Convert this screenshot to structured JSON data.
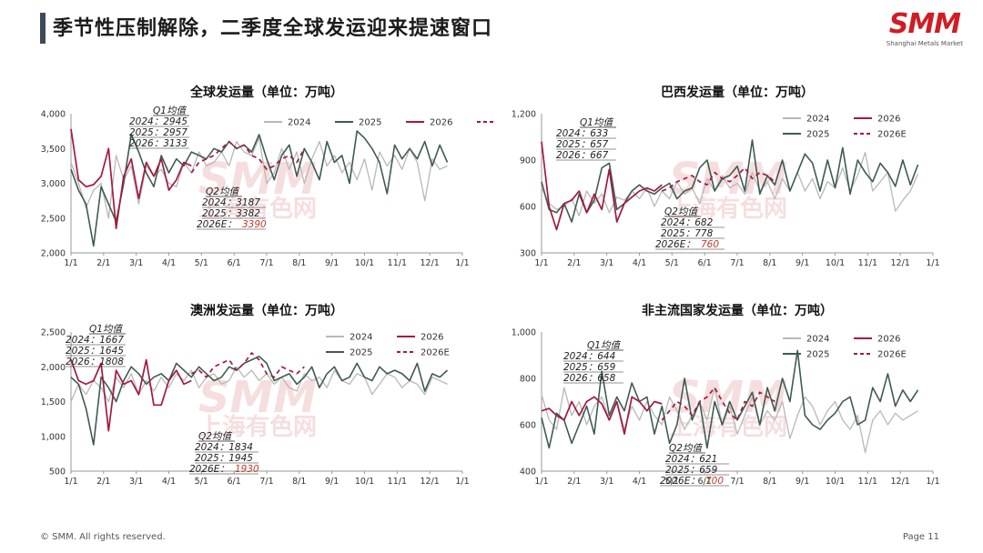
{
  "header": {
    "title": "季节性压制解除，二季度全球发运迎来提速窗口"
  },
  "logo": {
    "text": "SMM",
    "sub": "Shanghai Metals Market"
  },
  "footer": {
    "copyright": "© SMM. All rights reserved.",
    "page": "Page 11"
  },
  "watermark": {
    "main": "SMM",
    "sub": "上海有色网"
  },
  "colors": {
    "y2024": "#b8b8b8",
    "y2025": "#3e5b52",
    "y2026": "#a31a3c",
    "accent": "#d01c22"
  },
  "chart_data": [
    {
      "type": "line",
      "title": "全球发运量（单位：万吨）",
      "x_ticks": [
        "1/1",
        "2/1",
        "3/1",
        "4/1",
        "5/1",
        "6/1",
        "7/1",
        "8/1",
        "9/1",
        "10/1",
        "11/1",
        "12/1",
        "1/1"
      ],
      "y_ticks": [
        "2,000",
        "2,500",
        "3,000",
        "3,500",
        "4,000"
      ],
      "ylim": [
        2000,
        4000
      ],
      "series": [
        {
          "name": "2024",
          "values": [
            3300,
            3000,
            2650,
            2900,
            3000,
            2500,
            3400,
            3050,
            3250,
            2700,
            3250,
            3100,
            3200,
            3000,
            2950,
            3300,
            3150,
            3450,
            3250,
            3300,
            3450,
            3250,
            3600,
            3450,
            3400,
            3650,
            3000,
            3150,
            3500,
            3200,
            3450,
            3000,
            3350,
            3600,
            3250,
            3400,
            3150,
            3300,
            3050,
            3350,
            2900,
            3450,
            3250,
            3400,
            3200,
            3500,
            3300,
            2750,
            3350,
            3200,
            3250
          ]
        },
        {
          "name": "2025",
          "values": [
            3200,
            2900,
            2700,
            2100,
            2950,
            2700,
            2450,
            3000,
            3700,
            3450,
            3150,
            2950,
            3400,
            3150,
            3350,
            3250,
            3450,
            3400,
            3350,
            3500,
            3450,
            3600,
            3500,
            3550,
            3450,
            3700,
            3350,
            3050,
            3400,
            3550,
            3100,
            3500,
            3300,
            3050,
            3600,
            3300,
            3400,
            3000,
            3750,
            3650,
            3500,
            3300,
            2850,
            3550,
            3350,
            3500,
            3350,
            3600,
            3250,
            3550,
            3300
          ]
        },
        {
          "name": "2026",
          "values": [
            3780,
            3050,
            2950,
            2980,
            3100,
            3500,
            2350,
            3100,
            3350,
            2780,
            3300,
            3100,
            3350,
            2900,
            3050,
            3300,
            3250
          ]
        },
        {
          "name": "2026E",
          "values": [
            3150,
            3300,
            3350,
            3400,
            3500,
            3600,
            3500,
            3550,
            3400,
            3350,
            3200,
            3250,
            3350,
            3400,
            3300,
            3500
          ]
        }
      ],
      "annotations": {
        "q1": {
          "label": "Q1均值",
          "lines": [
            "2024：2945",
            "2025：2957",
            "2026：3133"
          ]
        },
        "q2": {
          "label": "Q2均值",
          "lines": [
            "2024：3187",
            "2025：3382"
          ],
          "highlight_prefix": "2026E：",
          "highlight": "3390"
        }
      },
      "legend_position": "top-right",
      "legend": [
        "2024",
        "2025",
        "2026",
        "2026E"
      ]
    },
    {
      "type": "line",
      "title": "巴西发运量（单位：万吨）",
      "x_ticks": [
        "1/1",
        "2/1",
        "3/1",
        "4/1",
        "5/1",
        "6/1",
        "7/1",
        "8/1",
        "9/1",
        "10/1",
        "11/1",
        "12/1",
        "1/1"
      ],
      "y_ticks": [
        "300",
        "600",
        "900",
        "1,200"
      ],
      "ylim": [
        300,
        1200
      ],
      "series": [
        {
          "name": "2024",
          "values": [
            720,
            620,
            580,
            600,
            650,
            540,
            700,
            620,
            680,
            560,
            660,
            640,
            700,
            650,
            720,
            600,
            700,
            650,
            760,
            680,
            720,
            620,
            780,
            700,
            800,
            720,
            750,
            680,
            820,
            700,
            760,
            650,
            780,
            700,
            820,
            700,
            780,
            650,
            760,
            720,
            850,
            700,
            800,
            950,
            700,
            760,
            820,
            570,
            640,
            700,
            810
          ]
        },
        {
          "name": "2025",
          "values": [
            760,
            580,
            560,
            620,
            500,
            680,
            560,
            640,
            850,
            880,
            580,
            620,
            700,
            740,
            700,
            680,
            720,
            750,
            650,
            700,
            720,
            850,
            900,
            700,
            780,
            800,
            860,
            700,
            1030,
            680,
            800,
            740,
            900,
            700,
            820,
            940,
            880,
            700,
            900,
            720,
            980,
            680,
            900,
            820,
            760,
            880,
            820,
            730,
            900,
            740,
            870
          ]
        },
        {
          "name": "2026",
          "values": [
            1020,
            600,
            450,
            620,
            640,
            700,
            560,
            680,
            580,
            840,
            500,
            620,
            660,
            700,
            720,
            700,
            740
          ]
        },
        {
          "name": "2026E",
          "values": [
            700,
            720,
            760,
            780,
            800,
            760,
            740,
            820,
            780,
            760,
            800,
            850,
            780,
            820,
            800,
            760
          ]
        }
      ],
      "annotations": {
        "q1": {
          "label": "Q1均值",
          "lines": [
            "2024：633",
            "2025：657",
            "2026：667"
          ]
        },
        "q2": {
          "label": "Q2均值",
          "lines": [
            "2024：682",
            "2025：778"
          ],
          "highlight_prefix": "2026E：",
          "highlight": "760"
        }
      },
      "legend_position": "top-right",
      "legend": [
        "2024",
        "2026",
        "2025",
        "2026E"
      ]
    },
    {
      "type": "line",
      "title": "澳洲发运量（单位：万吨）",
      "x_ticks": [
        "1/1",
        "2/1",
        "3/1",
        "4/1",
        "5/1",
        "6/1",
        "7/1",
        "8/1",
        "9/1",
        "10/1",
        "11/1",
        "12/1",
        "1/1"
      ],
      "y_ticks": [
        "500",
        "1,000",
        "1,500",
        "2,000",
        "2,500"
      ],
      "ylim": [
        500,
        2500
      ],
      "series": [
        {
          "name": "2024",
          "values": [
            1500,
            1750,
            1600,
            1800,
            1700,
            1500,
            1850,
            1700,
            1900,
            1600,
            1800,
            1650,
            1850,
            1700,
            1900,
            1800,
            1950,
            1700,
            1850,
            1900,
            1750,
            1800,
            2000,
            1850,
            1950,
            1800,
            1900,
            1750,
            1850,
            1700,
            1650,
            1900,
            1800,
            1850,
            1700,
            1950,
            1800,
            1750,
            1900,
            1850,
            1600,
            1750,
            1900,
            1850,
            1700,
            1800,
            1750,
            1600,
            1850,
            1800,
            1750
          ]
        },
        {
          "name": "2025",
          "values": [
            1850,
            1750,
            1400,
            880,
            1850,
            1700,
            1500,
            1800,
            2000,
            1900,
            1750,
            1850,
            1900,
            1800,
            2050,
            1950,
            1850,
            2000,
            1900,
            1800,
            1850,
            2000,
            1950,
            2050,
            2100,
            2150,
            2050,
            1800,
            1850,
            1900,
            1750,
            1850,
            2000,
            1700,
            1900,
            2000,
            1800,
            1850,
            2050,
            1850,
            1800,
            2000,
            1900,
            1950,
            1900,
            1800,
            2050,
            1650,
            1900,
            1850,
            1950
          ]
        },
        {
          "name": "2026",
          "values": [
            2100,
            1800,
            1750,
            1800,
            2050,
            1080,
            1950,
            1750,
            1800,
            1600,
            2100,
            1450,
            1450,
            1800,
            1950,
            1750,
            1800
          ]
        },
        {
          "name": "2026E",
          "values": [
            1900,
            1950,
            1850,
            2000,
            2050,
            2100,
            1950,
            2050,
            2200,
            2100,
            1900,
            1850,
            2000,
            1950,
            1900,
            2000
          ]
        }
      ],
      "annotations": {
        "q1": {
          "label": "Q1均值",
          "lines": [
            "2024：1667",
            "2025：1645",
            "2026：1808"
          ]
        },
        "q2": {
          "label": "Q2均值",
          "lines": [
            "2024：1834",
            "2025：1945"
          ],
          "highlight_prefix": "2026E：",
          "highlight": "1930"
        }
      },
      "legend_position": "top-right",
      "legend": [
        "2024",
        "2026",
        "2025",
        "2026E"
      ]
    },
    {
      "type": "line",
      "title": "非主流国家发运量（单位：万吨）",
      "x_ticks": [
        "1/1",
        "2/1",
        "3/1",
        "4/1",
        "5/1",
        "6/1",
        "7/1",
        "8/1",
        "9/1",
        "10/1",
        "11/1",
        "12/1",
        "1/1"
      ],
      "y_ticks": [
        "400",
        "600",
        "800",
        "1,000"
      ],
      "ylim": [
        400,
        1000
      ],
      "series": [
        {
          "name": "2024",
          "values": [
            730,
            620,
            580,
            760,
            640,
            700,
            600,
            680,
            720,
            620,
            700,
            580,
            680,
            620,
            700,
            640,
            600,
            720,
            660,
            580,
            640,
            700,
            620,
            760,
            600,
            680,
            560,
            640,
            720,
            600,
            660,
            620,
            700,
            540,
            640,
            720,
            680,
            600,
            660,
            700,
            620,
            580,
            640,
            480,
            620,
            660,
            600,
            650,
            620,
            640,
            660
          ]
        },
        {
          "name": "2025",
          "values": [
            630,
            500,
            650,
            620,
            520,
            600,
            680,
            560,
            830,
            640,
            720,
            660,
            780,
            700,
            720,
            560,
            680,
            520,
            600,
            800,
            620,
            700,
            500,
            700,
            600,
            700,
            620,
            680,
            740,
            600,
            760,
            660,
            800,
            700,
            920,
            640,
            600,
            580,
            620,
            650,
            700,
            720,
            600,
            620,
            760,
            700,
            820,
            680,
            750,
            700,
            750
          ]
        },
        {
          "name": "2026",
          "values": [
            660,
            670,
            640,
            620,
            700,
            640,
            700,
            720,
            690,
            620,
            700,
            560,
            720,
            700,
            660,
            700,
            690
          ]
        },
        {
          "name": "2026E",
          "values": [
            620,
            660,
            700,
            680,
            640,
            700,
            720,
            760,
            700,
            650,
            620,
            700,
            680,
            740,
            720,
            700
          ]
        }
      ],
      "annotations": {
        "q1": {
          "label": "Q1均值",
          "lines": [
            "2024：644",
            "2025：659",
            "2026：658"
          ]
        },
        "q2": {
          "label": "Q2均值",
          "lines": [
            "2024：621",
            "2025：659"
          ],
          "highlight_prefix": "2026E：",
          "highlight": "700"
        }
      },
      "legend_position": "top-right",
      "legend": [
        "2024",
        "2026",
        "2025",
        "2026E"
      ]
    }
  ]
}
